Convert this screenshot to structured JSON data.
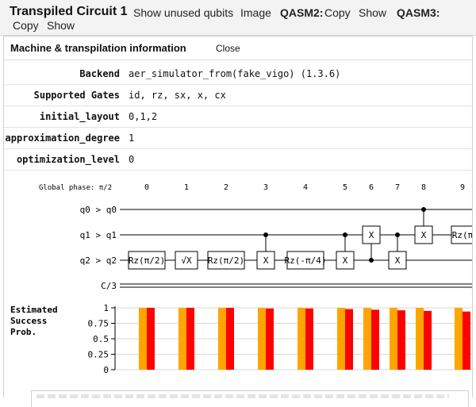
{
  "header": {
    "title": "Transpiled Circuit 1",
    "show_unused_qubits": "Show unused qubits",
    "image": "Image",
    "qasm2": "QASM2:",
    "qasm2_copy": "Copy",
    "qasm2_show": "Show",
    "qasm3": "QASM3:",
    "qasm3_copy": "Copy",
    "qasm3_show": "Show"
  },
  "panel": {
    "title": "Machine & transpilation information",
    "close": "Close",
    "rows": [
      {
        "label": "Backend",
        "value": "aer_simulator_from(fake_vigo) (1.3.6)"
      },
      {
        "label": "Supported Gates",
        "value": "id, rz, sx, x, cx"
      },
      {
        "label": "initial_layout",
        "value": "0,1,2"
      },
      {
        "label": "approximation_degree",
        "value": "1"
      },
      {
        "label": "optimization_level",
        "value": "0"
      }
    ]
  },
  "circuit": {
    "global_phase": "Global phase: π/2",
    "columns": [
      "0",
      "1",
      "2",
      "3",
      "4",
      "5",
      "6",
      "7",
      "8",
      "9"
    ],
    "wires": [
      "q0 > q0",
      "q1 > q1",
      "q2 > q2"
    ],
    "classical": "C/3",
    "gates": [
      {
        "wire": 2,
        "col": 0,
        "label": "Rz(π/2)"
      },
      {
        "wire": 2,
        "col": 1,
        "label": "√X"
      },
      {
        "wire": 2,
        "col": 2,
        "label": "Rz(π/2)"
      },
      {
        "wire": 2,
        "col": 3,
        "label": "X"
      },
      {
        "wire": 2,
        "col": 4,
        "label": "Rz(-π/4)"
      },
      {
        "wire": 2,
        "col": 5,
        "label": "X"
      },
      {
        "wire": 1,
        "col": 6,
        "label": "X"
      },
      {
        "wire": 2,
        "col": 7,
        "label": "X"
      },
      {
        "wire": 1,
        "col": 8,
        "label": "X"
      },
      {
        "wire": 1,
        "col": 9,
        "label": "Rz(π"
      }
    ],
    "cnots": [
      {
        "col": 3,
        "control": 1,
        "target": 2
      },
      {
        "col": 5,
        "control": 1,
        "target": 2
      },
      {
        "col": 6,
        "control": 2,
        "target": 1
      },
      {
        "col": 7,
        "control": 1,
        "target": 2
      },
      {
        "col": 8,
        "control": 0,
        "target": 1
      }
    ]
  },
  "chart_data": {
    "type": "bar",
    "title": "Estimated Success Prob.",
    "categories": [
      "0",
      "1",
      "2",
      "3",
      "4",
      "5",
      "6",
      "7",
      "8",
      "9"
    ],
    "series": [
      {
        "color": "#ffa500",
        "values": [
          1,
          1,
          1,
          1,
          1,
          1,
          1,
          1,
          1,
          1
        ]
      },
      {
        "color": "#ff0000",
        "values": [
          1,
          1,
          1,
          0.99,
          0.99,
          0.98,
          0.97,
          0.96,
          0.95,
          0.94
        ]
      }
    ],
    "yticks": [
      "0",
      "0.25",
      "0.5",
      "0.75",
      "1"
    ],
    "ylim": [
      0,
      1
    ],
    "grid": true
  }
}
